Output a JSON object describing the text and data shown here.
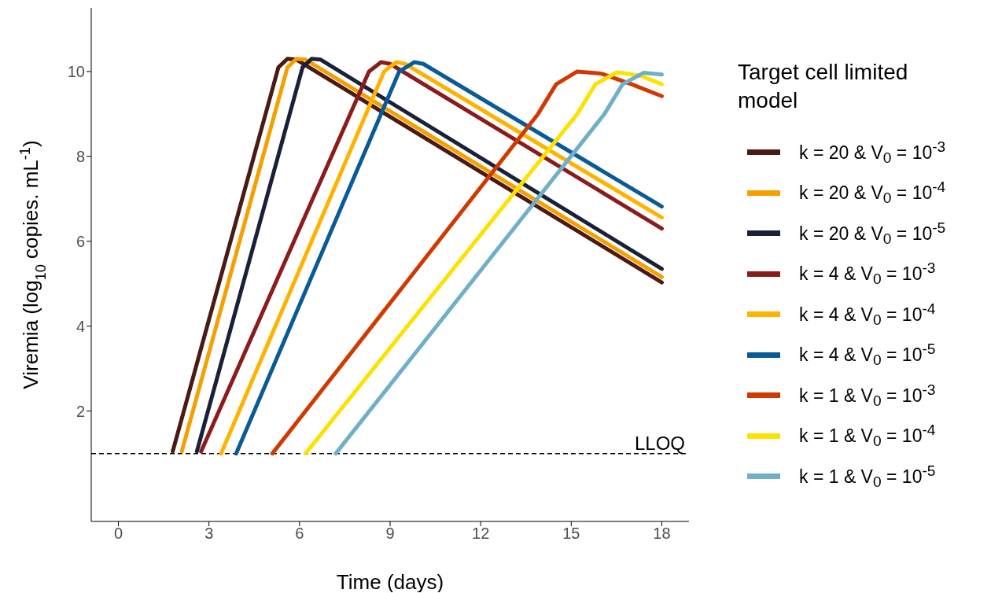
{
  "chart_data": {
    "type": "line",
    "xlabel": "Time (days)",
    "ylabel": "Viremia (log$_{10}$ copies. mL$^{-1}$)",
    "legend_title": "Target cell limited model",
    "legend": "right",
    "grid": false,
    "xlim": [
      -0.9,
      18.9
    ],
    "xticks": [
      0,
      3,
      6,
      9,
      12,
      15,
      18
    ],
    "ylim": [
      -0.6,
      11.5
    ],
    "yticks": [
      2,
      4,
      6,
      8,
      10
    ],
    "ref_lines": [
      {
        "axis": "y",
        "value": 1,
        "label": "LLOQ",
        "line_style": "dashed",
        "color": "#000000"
      }
    ],
    "series": [
      {
        "name": "k = 20  &  V$_{0}$ = 10$^{-3}$",
        "color": "#4a1a14",
        "x": [
          1.8,
          5.3,
          5.6,
          5.9,
          18
        ],
        "values": [
          1.05,
          10.1,
          10.3,
          10.28,
          5.03
        ]
      },
      {
        "name": "k = 20  &  V$_{0}$ = 10$^{-4}$",
        "color": "#f5a000",
        "x": [
          2.1,
          5.6,
          5.9,
          6.2,
          18
        ],
        "values": [
          1.05,
          10.1,
          10.3,
          10.28,
          5.16
        ]
      },
      {
        "name": "k = 20  &  V$_{0}$ = 10$^{-5}$",
        "color": "#1a2038",
        "x": [
          2.6,
          6.1,
          6.4,
          6.7,
          18
        ],
        "values": [
          1.05,
          10.1,
          10.3,
          10.28,
          5.35
        ]
      },
      {
        "name": "k = 4  &  V$_{0}$ = 10$^{-3}$",
        "color": "#8b1c1c",
        "x": [
          2.74,
          8.3,
          8.7,
          9.0,
          18
        ],
        "values": [
          1.05,
          10.0,
          10.22,
          10.18,
          6.3
        ]
      },
      {
        "name": "k = 4  &  V$_{0}$ = 10$^{-4}$",
        "color": "#ffb300",
        "x": [
          3.4,
          8.8,
          9.2,
          9.5,
          18
        ],
        "values": [
          1.0,
          10.0,
          10.22,
          10.18,
          6.56
        ]
      },
      {
        "name": "k = 4  &  V$_{0}$ = 10$^{-5}$",
        "color": "#0a5a96",
        "x": [
          3.9,
          9.3,
          9.8,
          10.1,
          18
        ],
        "values": [
          1.0,
          10.0,
          10.22,
          10.18,
          6.82
        ]
      },
      {
        "name": "k = 1  &  V$_{0}$ = 10$^{-3}$",
        "color": "#d03a00",
        "x": [
          5.1,
          13.9,
          14.5,
          15.2,
          16,
          17,
          18
        ],
        "values": [
          1.0,
          9.0,
          9.7,
          10.0,
          9.95,
          9.7,
          9.42
        ]
      },
      {
        "name": "k = 1  &  V$_{0}$ = 10$^{-4}$",
        "color": "#ffe100",
        "x": [
          6.2,
          15.2,
          15.8,
          16.5,
          17.3,
          18
        ],
        "values": [
          1.0,
          9.0,
          9.7,
          9.98,
          9.9,
          9.7
        ]
      },
      {
        "name": "k = 1  &  V$_{0}$ = 10$^{-5}$",
        "color": "#6fb0c8",
        "x": [
          7.2,
          16.1,
          16.7,
          17.4,
          18
        ],
        "values": [
          1.0,
          9.0,
          9.7,
          9.97,
          9.93
        ]
      }
    ]
  }
}
